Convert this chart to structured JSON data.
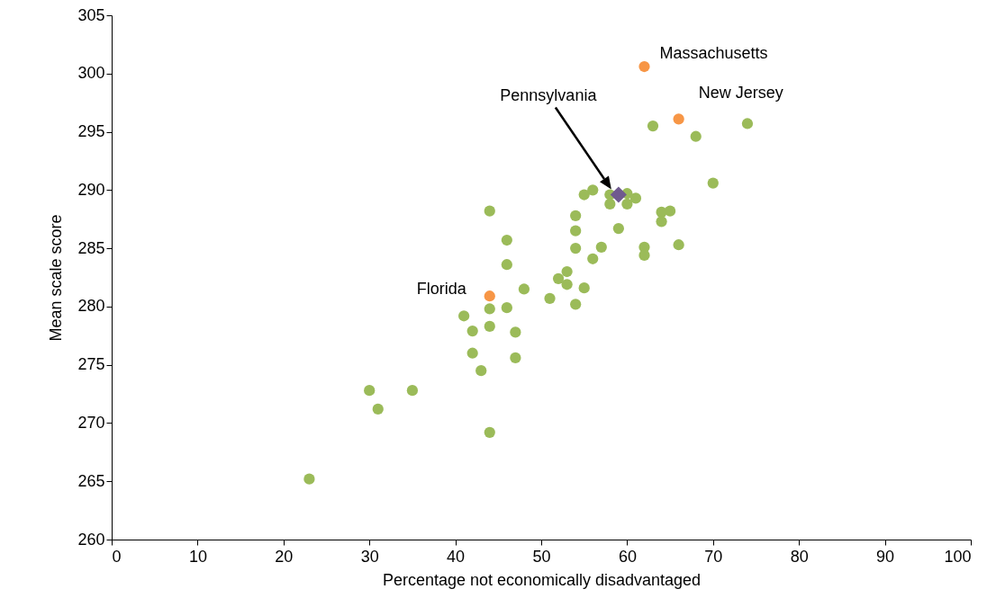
{
  "chart_data": {
    "type": "scatter",
    "xlabel": "Percentage not economically disadvantaged",
    "ylabel": "Mean scale score",
    "xlim": [
      0,
      100
    ],
    "xticks": [
      0,
      10,
      20,
      30,
      40,
      50,
      60,
      70,
      80,
      90,
      100
    ],
    "ylim": [
      260,
      305
    ],
    "yticks": [
      260,
      265,
      270,
      275,
      280,
      285,
      290,
      295,
      300,
      305
    ],
    "grid": false,
    "marker": "circle",
    "series": [
      {
        "color": "#9bbb59",
        "x": [
          23,
          30,
          31,
          35,
          44,
          43,
          42,
          42,
          41,
          44,
          44,
          47,
          47,
          46,
          48,
          46,
          46,
          44,
          51,
          52,
          53,
          53,
          54,
          55,
          54,
          54,
          54,
          56,
          57,
          59,
          55,
          56,
          58,
          58,
          60,
          60,
          61,
          62,
          62,
          64,
          64,
          65,
          66,
          70,
          63,
          68,
          74
        ],
        "values": [
          265.2,
          272.8,
          271.2,
          272.8,
          269.2,
          274.5,
          276,
          277.9,
          279.2,
          278.3,
          279.8,
          277.8,
          275.6,
          279.9,
          281.5,
          283.6,
          285.7,
          288.2,
          280.7,
          282.4,
          281.9,
          283,
          280.2,
          281.6,
          285,
          286.5,
          287.8,
          284.1,
          285.1,
          286.7,
          289.6,
          290,
          288.8,
          289.6,
          289.7,
          288.8,
          289.3,
          285.1,
          284.4,
          288.1,
          287.3,
          288.2,
          285.3,
          290.6,
          295.5,
          294.6,
          295.7
        ]
      },
      {
        "color": "#f79646",
        "x": [
          62,
          66,
          44
        ],
        "values": [
          300.6,
          296.1,
          280.9
        ]
      },
      {
        "color": "#705a8f",
        "marker": "diamond",
        "x": [
          59
        ],
        "values": [
          289.6
        ]
      }
    ],
    "annotations": [
      {
        "text": "Massachusetts",
        "x": 62,
        "y": 300.6
      },
      {
        "text": "New Jersey",
        "x": 66,
        "y": 296.1
      },
      {
        "text": "Florida",
        "x": 44,
        "y": 280.9
      },
      "Pennsylvania"
    ]
  }
}
